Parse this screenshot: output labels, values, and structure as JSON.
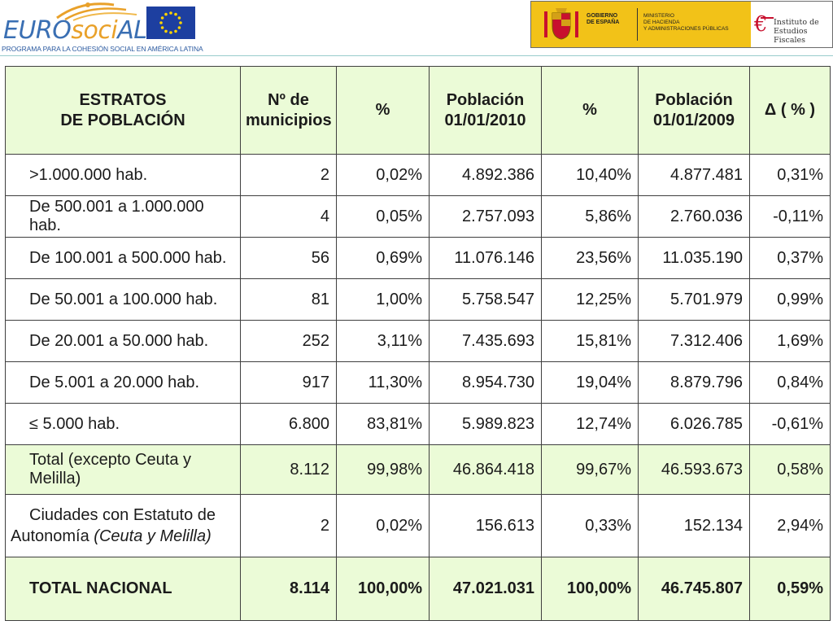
{
  "header": {
    "eurosocial": {
      "word_part1": "EURO",
      "word_part2": "soci",
      "word_part3": "AL",
      "tagline": "PROGRAMA PARA LA COHESIÓN SOCIAL EN AMÉRICA LATINA"
    },
    "gobierno": {
      "line1": "GOBIERNO",
      "line2": "DE ESPAÑA"
    },
    "ministerio": {
      "line1": "MINISTERIO",
      "line2": "DE HACIENDA",
      "line3": "Y ADMINISTRACIONES PÚBLICAS"
    },
    "ief": {
      "line1": "Instituto de",
      "line2": "Estudios Fiscales"
    }
  },
  "table": {
    "headers": [
      {
        "line1": "ESTRATOS",
        "line2": "DE POBLACIÓN"
      },
      {
        "line1": "Nº de",
        "line2": "municipios"
      },
      {
        "line1": "%",
        "line2": ""
      },
      {
        "line1": "Población",
        "line2": "01/01/2010"
      },
      {
        "line1": "%",
        "line2": ""
      },
      {
        "line1": "Población",
        "line2": "01/01/2009"
      },
      {
        "line1": "Δ ( % )",
        "line2": ""
      }
    ],
    "rows": [
      {
        "label": ">1.000.000 hab.",
        "municipios": "2",
        "pct_mun": "0,02%",
        "pob2010": "4.892.386",
        "pct_pob": "10,40%",
        "pob2009": "4.877.481",
        "delta": "0,31%"
      },
      {
        "label": "De 500.001 a 1.000.000 hab.",
        "municipios": "4",
        "pct_mun": "0,05%",
        "pob2010": "2.757.093",
        "pct_pob": "5,86%",
        "pob2009": "2.760.036",
        "delta": "-0,11%"
      },
      {
        "label": "De 100.001 a 500.000 hab.",
        "municipios": "56",
        "pct_mun": "0,69%",
        "pob2010": "11.076.146",
        "pct_pob": "23,56%",
        "pob2009": "11.035.190",
        "delta": "0,37%"
      },
      {
        "label": "De 50.001 a 100.000 hab.",
        "municipios": "81",
        "pct_mun": "1,00%",
        "pob2010": "5.758.547",
        "pct_pob": "12,25%",
        "pob2009": "5.701.979",
        "delta": "0,99%"
      },
      {
        "label": "De 20.001 a 50.000 hab.",
        "municipios": "252",
        "pct_mun": "3,11%",
        "pob2010": "7.435.693",
        "pct_pob": "15,81%",
        "pob2009": "7.312.406",
        "delta": "1,69%"
      },
      {
        "label": "De 5.001 a 20.000 hab.",
        "municipios": "917",
        "pct_mun": "11,30%",
        "pob2010": "8.954.730",
        "pct_pob": "19,04%",
        "pob2009": "8.879.796",
        "delta": "0,84%"
      },
      {
        "label": "≤ 5.000 hab.",
        "municipios": "6.800",
        "pct_mun": "83,81%",
        "pob2010": "5.989.823",
        "pct_pob": "12,74%",
        "pob2009": "6.026.785",
        "delta": "-0,61%"
      }
    ],
    "total": {
      "label": "Total (excepto Ceuta y Melilla)",
      "municipios": "8.112",
      "pct_mun": "99,98%",
      "pob2010": "46.864.418",
      "pct_pob": "99,67%",
      "pob2009": "46.593.673",
      "delta": "0,58%"
    },
    "ciudades": {
      "label_line1": "Ciudades con Estatuto de",
      "label_line2_normal": "Autonomía ",
      "label_line2_italic": "(Ceuta y Melilla)",
      "municipios": "2",
      "pct_mun": "0,02%",
      "pob2010": "156.613",
      "pct_pob": "0,33%",
      "pob2009": "152.134",
      "delta": "2,94%"
    },
    "total_nacional": {
      "label": "TOTAL NACIONAL",
      "municipios": "8.114",
      "pct_mun": "100,00%",
      "pob2010": "47.021.031",
      "pct_pob": "100,00%",
      "pob2009": "46.745.807",
      "delta": "0,59%"
    }
  },
  "colors": {
    "header_fill": "#ebfbd7",
    "border": "#3f3f3f",
    "eurosocial_blue": "#3a6fb3",
    "eurosocial_orange": "#e9a12a",
    "gov_yellow": "#f2c218"
  }
}
